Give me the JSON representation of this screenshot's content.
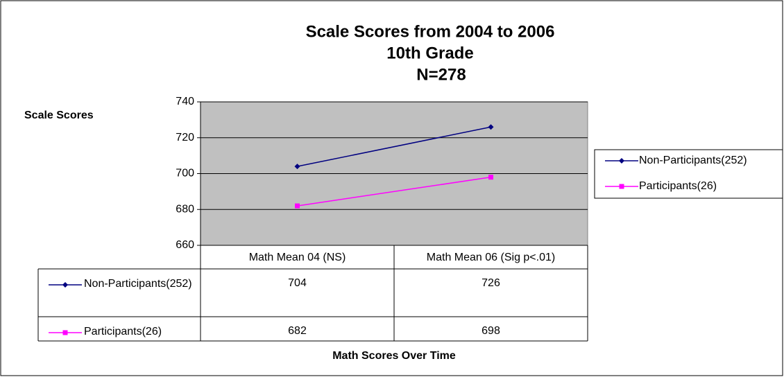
{
  "chart_data": {
    "type": "line",
    "title": [
      "Scale Scores from 2004 to 2006",
      "10th Grade",
      "N=278"
    ],
    "y_label": "Scale Scores",
    "x_label": "Math Scores Over Time",
    "categories": [
      "Math Mean 04 (NS)",
      "Math Mean 06 (Sig p<.01)"
    ],
    "series": [
      {
        "name": "Non-Participants(252)",
        "color": "#000080",
        "marker": "diamond",
        "values": [
          704,
          726
        ]
      },
      {
        "name": "Participants(26)",
        "color": "#ff00ff",
        "marker": "square",
        "values": [
          682,
          698
        ]
      }
    ],
    "ylim": [
      660,
      740
    ],
    "yticks": [
      660,
      680,
      700,
      720,
      740
    ],
    "grid": true,
    "plot_background": "#c0c0c0",
    "legend": "right",
    "data_table": true
  }
}
